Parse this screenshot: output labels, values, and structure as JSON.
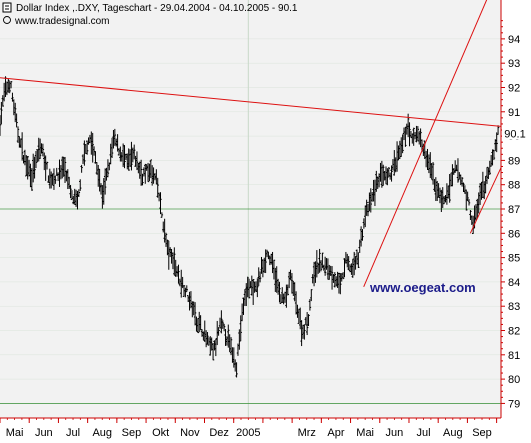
{
  "chart_data": {
    "type": "ohlc",
    "title": "Dollar Index ,.DXY, Tageschart - 29.04.2004 - 04.10.2005 - 90.1",
    "source": "www.tradesignal.com",
    "watermark": "www.oegeat.com",
    "ylim": [
      78.4,
      95.6
    ],
    "yticks": [
      79,
      80,
      81,
      82,
      83,
      84,
      85,
      86,
      87,
      88,
      89,
      90,
      91,
      92,
      93,
      94
    ],
    "last_value_label": "90.1",
    "last_value": 90.1,
    "xticks": [
      {
        "label": "Mai",
        "x": 0.5
      },
      {
        "label": "Jun",
        "x": 1.5
      },
      {
        "label": "Jul",
        "x": 2.5
      },
      {
        "label": "Aug",
        "x": 3.5
      },
      {
        "label": "Sep",
        "x": 4.5
      },
      {
        "label": "Okt",
        "x": 5.5
      },
      {
        "label": "Nov",
        "x": 6.5
      },
      {
        "label": "Dez",
        "x": 7.5
      },
      {
        "label": "2005",
        "x": 8.5
      },
      {
        "label": "Mrz",
        "x": 10.5
      },
      {
        "label": "Apr",
        "x": 11.5
      },
      {
        "label": "Mai",
        "x": 12.5
      },
      {
        "label": "Jun",
        "x": 13.5
      },
      {
        "label": "Jul",
        "x": 14.5
      },
      {
        "label": "Aug",
        "x": 15.5
      },
      {
        "label": "Sep",
        "x": 16.5
      }
    ],
    "xlim": [
      0,
      17.15
    ],
    "price_path": [
      [
        0.0,
        90.6
      ],
      [
        0.15,
        91.8
      ],
      [
        0.35,
        92.2
      ],
      [
        0.6,
        90.2
      ],
      [
        0.85,
        89.0
      ],
      [
        1.1,
        88.4
      ],
      [
        1.4,
        89.6
      ],
      [
        1.7,
        88.2
      ],
      [
        2.0,
        88.4
      ],
      [
        2.2,
        88.8
      ],
      [
        2.45,
        87.5
      ],
      [
        2.65,
        87.2
      ],
      [
        2.85,
        89.0
      ],
      [
        3.05,
        90.0
      ],
      [
        3.25,
        89.2
      ],
      [
        3.5,
        87.5
      ],
      [
        3.7,
        88.6
      ],
      [
        3.9,
        89.9
      ],
      [
        4.1,
        89.4
      ],
      [
        4.35,
        88.9
      ],
      [
        4.6,
        89.2
      ],
      [
        4.85,
        88.4
      ],
      [
        5.1,
        88.6
      ],
      [
        5.35,
        88.2
      ],
      [
        5.55,
        86.7
      ],
      [
        5.75,
        85.2
      ],
      [
        5.95,
        84.9
      ],
      [
        6.15,
        84.1
      ],
      [
        6.35,
        83.7
      ],
      [
        6.55,
        83.1
      ],
      [
        6.75,
        82.4
      ],
      [
        6.95,
        82.0
      ],
      [
        7.15,
        81.4
      ],
      [
        7.35,
        81.2
      ],
      [
        7.55,
        82.3
      ],
      [
        7.75,
        81.8
      ],
      [
        7.95,
        81.1
      ],
      [
        8.1,
        80.6
      ],
      [
        8.3,
        82.8
      ],
      [
        8.5,
        83.9
      ],
      [
        8.75,
        83.6
      ],
      [
        8.95,
        84.5
      ],
      [
        9.15,
        85.2
      ],
      [
        9.35,
        84.6
      ],
      [
        9.55,
        83.6
      ],
      [
        9.75,
        83.2
      ],
      [
        9.95,
        84.2
      ],
      [
        10.15,
        83.1
      ],
      [
        10.35,
        81.9
      ],
      [
        10.55,
        82.5
      ],
      [
        10.75,
        84.4
      ],
      [
        10.95,
        84.8
      ],
      [
        11.2,
        84.6
      ],
      [
        11.45,
        84.2
      ],
      [
        11.65,
        83.8
      ],
      [
        11.85,
        84.9
      ],
      [
        12.05,
        84.5
      ],
      [
        12.25,
        85.0
      ],
      [
        12.5,
        86.7
      ],
      [
        12.75,
        87.5
      ],
      [
        13.0,
        88.4
      ],
      [
        13.25,
        88.2
      ],
      [
        13.5,
        88.8
      ],
      [
        13.75,
        89.5
      ],
      [
        13.95,
        90.5
      ],
      [
        14.1,
        89.8
      ],
      [
        14.3,
        90.2
      ],
      [
        14.5,
        89.4
      ],
      [
        14.7,
        88.8
      ],
      [
        14.95,
        87.8
      ],
      [
        15.2,
        87.3
      ],
      [
        15.4,
        87.9
      ],
      [
        15.6,
        88.7
      ],
      [
        15.85,
        88.0
      ],
      [
        16.05,
        87.2
      ],
      [
        16.2,
        86.3
      ],
      [
        16.45,
        87.6
      ],
      [
        16.7,
        88.3
      ],
      [
        16.9,
        89.3
      ],
      [
        17.05,
        90.1
      ]
    ],
    "trendlines": [
      {
        "name": "resistance",
        "from": [
          0.0,
          92.4
        ],
        "to": [
          17.15,
          90.4
        ]
      },
      {
        "name": "steep-support",
        "from": [
          12.45,
          83.8
        ],
        "to": [
          16.8,
          96.0
        ]
      },
      {
        "name": "support",
        "from": [
          16.1,
          86.0
        ],
        "to": [
          17.15,
          88.7
        ]
      }
    ],
    "hlines": [
      87,
      79
    ],
    "vlines": [
      8.5
    ],
    "grid": "faint",
    "colors": {
      "plot_bg": "#f2f2f2",
      "price": "#000000",
      "trendline": "#dd1111",
      "axis": "#cc0000",
      "grid": "#c8d8c8",
      "hline": "#2a8a2a",
      "watermark": "#1c1c8a"
    }
  }
}
